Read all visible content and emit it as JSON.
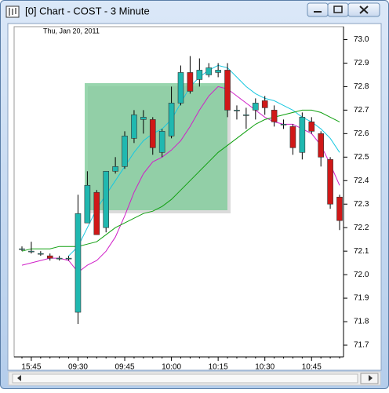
{
  "window": {
    "title": "[0]  Chart - COST - 3 Minute"
  },
  "chart_data": {
    "type": "candlestick",
    "subtitle": "Thu, Jan 20, 2011",
    "categories": [
      null,
      "15:45",
      null,
      null,
      null,
      null,
      "09:30",
      null,
      null,
      null,
      null,
      "09:45",
      null,
      null,
      null,
      null,
      "10:00",
      null,
      null,
      null,
      null,
      "10:15",
      null,
      null,
      null,
      null,
      "10:30",
      null,
      null,
      null,
      null,
      "10:45",
      null,
      null,
      null
    ],
    "open": [
      72.11,
      72.1,
      72.09,
      72.08,
      72.07,
      72.07,
      71.84,
      72.22,
      72.35,
      72.2,
      72.44,
      72.46,
      72.58,
      72.66,
      72.66,
      72.52,
      72.59,
      72.73,
      72.86,
      72.83,
      72.85,
      72.86,
      72.87,
      72.7,
      72.68,
      72.7,
      72.74,
      72.7,
      72.64,
      72.63,
      72.52,
      72.65,
      72.6,
      72.49,
      72.33
    ],
    "high": [
      72.12,
      72.14,
      72.1,
      72.09,
      72.08,
      72.08,
      72.34,
      72.44,
      72.36,
      72.44,
      72.5,
      72.61,
      72.7,
      72.7,
      72.67,
      72.62,
      72.8,
      72.89,
      72.93,
      72.92,
      72.9,
      72.9,
      72.9,
      72.72,
      72.71,
      72.75,
      72.76,
      72.72,
      72.66,
      72.64,
      72.69,
      72.67,
      72.61,
      72.5,
      72.34
    ],
    "low": [
      72.1,
      72.09,
      72.08,
      72.06,
      72.06,
      72.06,
      71.79,
      72.22,
      72.17,
      72.18,
      72.43,
      72.45,
      72.56,
      72.6,
      72.51,
      72.5,
      72.58,
      72.72,
      72.77,
      72.8,
      72.84,
      72.84,
      72.67,
      72.66,
      72.62,
      72.66,
      72.68,
      72.63,
      72.62,
      72.51,
      72.49,
      72.6,
      72.46,
      72.28,
      72.19
    ],
    "close": [
      72.11,
      72.1,
      72.09,
      72.07,
      72.07,
      72.07,
      72.26,
      72.38,
      72.17,
      72.44,
      72.46,
      72.59,
      72.68,
      72.67,
      72.54,
      72.61,
      72.73,
      72.86,
      72.78,
      72.87,
      72.88,
      72.87,
      72.7,
      72.7,
      72.68,
      72.73,
      72.71,
      72.65,
      72.64,
      72.54,
      72.67,
      72.61,
      72.5,
      72.3,
      72.23
    ],
    "up_color": "#20b8b0",
    "down_color": "#d01818",
    "series": [
      {
        "color": "#18c8e0",
        "values": [
          null,
          null,
          null,
          null,
          null,
          72.08,
          72.12,
          72.2,
          72.28,
          72.34,
          72.4,
          72.46,
          72.52,
          72.57,
          72.6,
          72.62,
          72.66,
          72.73,
          72.8,
          72.84,
          72.87,
          72.89,
          72.88,
          72.84,
          72.8,
          72.77,
          72.75,
          72.74,
          72.72,
          72.7,
          72.67,
          72.65,
          72.62,
          72.58,
          72.52
        ]
      },
      {
        "color": "#d020c8",
        "values": [
          72.04,
          72.05,
          72.06,
          72.07,
          72.07,
          72.06,
          72.01,
          72.04,
          72.06,
          72.1,
          72.16,
          72.25,
          72.35,
          72.43,
          72.48,
          72.5,
          72.53,
          72.57,
          72.63,
          72.7,
          72.76,
          72.8,
          72.79,
          72.76,
          72.73,
          72.7,
          72.67,
          72.65,
          72.64,
          72.64,
          72.62,
          72.6,
          72.55,
          72.47,
          72.38
        ]
      },
      {
        "color": "#10a010",
        "values": [
          72.1,
          72.11,
          72.11,
          72.11,
          72.12,
          72.12,
          72.12,
          72.13,
          72.14,
          72.17,
          72.2,
          72.22,
          72.24,
          72.26,
          72.27,
          72.29,
          72.32,
          72.36,
          72.4,
          72.44,
          72.48,
          72.52,
          72.55,
          72.58,
          72.61,
          72.64,
          72.66,
          72.67,
          72.68,
          72.69,
          72.7,
          72.7,
          72.69,
          72.67,
          72.65
        ]
      }
    ],
    "ylim": [
      71.65,
      73.055
    ],
    "yticks": [
      {
        "value": 73,
        "label": "73.0"
      },
      72.9,
      72.8,
      72.7,
      72.6,
      72.5,
      72.4,
      72.3,
      72.2,
      72.1,
      {
        "value": 72,
        "label": "72.0"
      },
      71.9,
      71.8,
      71.7
    ]
  }
}
